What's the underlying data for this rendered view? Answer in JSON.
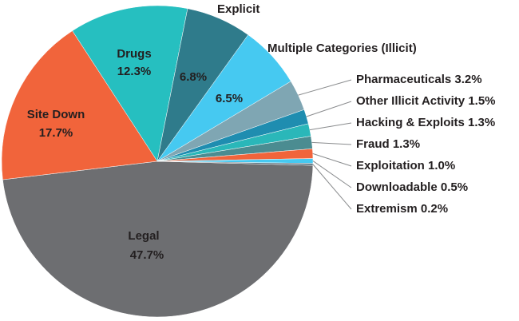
{
  "chart_data": {
    "type": "pie",
    "categories": [
      "Legal",
      "Site Down",
      "Drugs",
      "Explicit",
      "Multiple Categories (Illicit)",
      "Pharmaceuticals",
      "Other Illicit Activity",
      "Hacking & Exploits",
      "Fraud",
      "Exploitation",
      "Downloadable",
      "Extremism"
    ],
    "values": [
      47.7,
      17.7,
      12.3,
      6.8,
      6.5,
      3.2,
      1.5,
      1.3,
      1.3,
      1.0,
      0.5,
      0.2
    ],
    "value_labels": [
      "47.7%",
      "17.7%",
      "12.3%",
      "6.8%",
      "6.5%",
      "3.2%",
      "1.5%",
      "1.3%",
      "1.3%",
      "1.0%",
      "0.5%",
      "0.2%"
    ],
    "colors": [
      "#6d6e71",
      "#f1643b",
      "#26bfc0",
      "#2f7b8b",
      "#46c9f1",
      "#7fa6b3",
      "#1f8db0",
      "#2ab7b9",
      "#4b8c91",
      "#f1643b",
      "#46c9f1",
      "#5b7380"
    ]
  }
}
